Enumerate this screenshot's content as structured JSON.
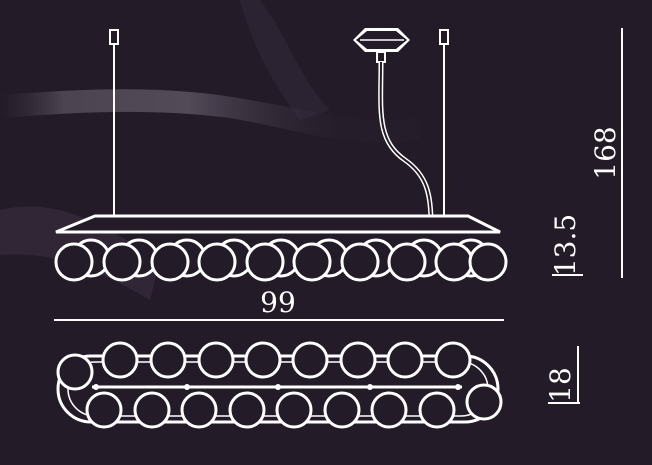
{
  "dimensions": {
    "width": "99",
    "shade_height": "13.5",
    "total_height": "168",
    "depth": "18"
  },
  "colors": {
    "background": "#241b29",
    "line": "#ffffff"
  },
  "fixture": {
    "front_view_globe_count": 9,
    "top_view_globe_count_per_row": 9
  }
}
